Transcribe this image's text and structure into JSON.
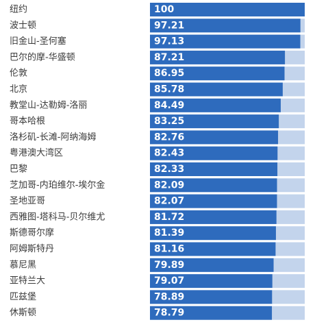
{
  "chart_data": {
    "type": "bar",
    "orientation": "horizontal",
    "categories": [
      "纽约",
      "波士顿",
      "旧金山-圣何塞",
      "巴尔的摩-华盛顿",
      "伦敦",
      "北京",
      "教堂山-达勒姆-洛丽",
      "哥本哈根",
      "洛杉矶-长滩-阿纳海姆",
      "粤港澳大湾区",
      "巴黎",
      "芝加哥-内珀维尔-埃尔金",
      "圣地亚哥",
      "西雅图-塔科马-贝尔维尤",
      "斯德哥尔摩",
      "阿姆斯特丹",
      "慕尼黑",
      "亚特兰大",
      "匹兹堡",
      "休斯顿"
    ],
    "values": [
      100,
      97.21,
      97.13,
      87.21,
      86.95,
      85.78,
      84.49,
      83.25,
      82.76,
      82.43,
      82.33,
      82.09,
      82.07,
      81.72,
      81.39,
      81.16,
      79.89,
      79.07,
      78.89,
      78.79
    ],
    "value_labels": [
      "100",
      "97.21",
      "97.13",
      "87.21",
      "86.95",
      "85.78",
      "84.49",
      "83.25",
      "82.76",
      "82.43",
      "82.33",
      "82.09",
      "82.07",
      "81.72",
      "81.39",
      "81.16",
      "79.89",
      "79.07",
      "78.89",
      "78.79"
    ],
    "xlim": [
      0,
      100
    ],
    "colors": {
      "bar": "#2e6bbd",
      "track": "#c3d4ec",
      "label_text": "#3a3a3a",
      "value_text": "#ffffff"
    }
  }
}
